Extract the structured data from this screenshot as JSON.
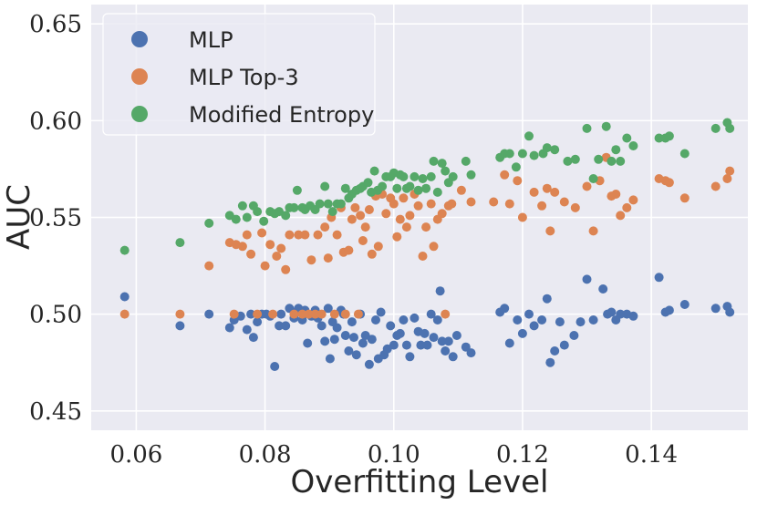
{
  "chart_data": {
    "type": "scatter",
    "title": "",
    "xlabel": "Overfitting Level",
    "ylabel": "AUC",
    "xlim": [
      0.053,
      0.155
    ],
    "ylim": [
      0.44,
      0.66
    ],
    "xticks": [
      0.06,
      0.08,
      0.1,
      0.12,
      0.14
    ],
    "xtick_labels": [
      "0.06",
      "0.08",
      "0.10",
      "0.12",
      "0.14"
    ],
    "yticks": [
      0.45,
      0.5,
      0.55,
      0.6,
      0.65
    ],
    "ytick_labels": [
      "0.45",
      "0.50",
      "0.55",
      "0.60",
      "0.65"
    ],
    "grid": true,
    "legend_position": "top-left",
    "series": [
      {
        "name": "MLP",
        "color": "#4c72b0",
        "points": [
          [
            0.0582,
            0.509
          ],
          [
            0.0668,
            0.494
          ],
          [
            0.0713,
            0.5
          ],
          [
            0.0745,
            0.493
          ],
          [
            0.0752,
            0.497
          ],
          [
            0.0762,
            0.499
          ],
          [
            0.0772,
            0.492
          ],
          [
            0.0778,
            0.5
          ],
          [
            0.0782,
            0.488
          ],
          [
            0.0788,
            0.496
          ],
          [
            0.0795,
            0.5
          ],
          [
            0.0802,
            0.5
          ],
          [
            0.0808,
            0.499
          ],
          [
            0.0815,
            0.473
          ],
          [
            0.0822,
            0.494
          ],
          [
            0.0825,
            0.5
          ],
          [
            0.0832,
            0.494
          ],
          [
            0.0838,
            0.503
          ],
          [
            0.0845,
            0.498
          ],
          [
            0.0848,
            0.501
          ],
          [
            0.0852,
            0.503
          ],
          [
            0.0858,
            0.497
          ],
          [
            0.0862,
            0.502
          ],
          [
            0.0866,
            0.485
          ],
          [
            0.0872,
            0.499
          ],
          [
            0.0878,
            0.502
          ],
          [
            0.0882,
            0.498
          ],
          [
            0.0888,
            0.494
          ],
          [
            0.0893,
            0.486
          ],
          [
            0.0898,
            0.503
          ],
          [
            0.0901,
            0.477
          ],
          [
            0.0905,
            0.496
          ],
          [
            0.0908,
            0.487
          ],
          [
            0.0912,
            0.493
          ],
          [
            0.0918,
            0.502
          ],
          [
            0.0922,
            0.5
          ],
          [
            0.0925,
            0.489
          ],
          [
            0.093,
            0.481
          ],
          [
            0.0935,
            0.496
          ],
          [
            0.0938,
            0.488
          ],
          [
            0.0942,
            0.479
          ],
          [
            0.0948,
            0.5
          ],
          [
            0.0952,
            0.485
          ],
          [
            0.0956,
            0.489
          ],
          [
            0.0962,
            0.474
          ],
          [
            0.0966,
            0.487
          ],
          [
            0.0972,
            0.497
          ],
          [
            0.0976,
            0.477
          ],
          [
            0.098,
            0.501
          ],
          [
            0.0985,
            0.479
          ],
          [
            0.099,
            0.482
          ],
          [
            0.0995,
            0.494
          ],
          [
            0.1,
            0.484
          ],
          [
            0.1005,
            0.489
          ],
          [
            0.101,
            0.49
          ],
          [
            0.1015,
            0.497
          ],
          [
            0.102,
            0.484
          ],
          [
            0.1025,
            0.478
          ],
          [
            0.1032,
            0.498
          ],
          [
            0.1038,
            0.491
          ],
          [
            0.1042,
            0.484
          ],
          [
            0.1048,
            0.49
          ],
          [
            0.1052,
            0.484
          ],
          [
            0.1058,
            0.5
          ],
          [
            0.1062,
            0.488
          ],
          [
            0.1068,
            0.497
          ],
          [
            0.1072,
            0.512
          ],
          [
            0.1075,
            0.486
          ],
          [
            0.108,
            0.481
          ],
          [
            0.1085,
            0.486
          ],
          [
            0.1092,
            0.478
          ],
          [
            0.1098,
            0.489
          ],
          [
            0.1112,
            0.483
          ],
          [
            0.112,
            0.48
          ],
          [
            0.1165,
            0.501
          ],
          [
            0.1172,
            0.503
          ],
          [
            0.118,
            0.485
          ],
          [
            0.1192,
            0.497
          ],
          [
            0.12,
            0.49
          ],
          [
            0.121,
            0.5
          ],
          [
            0.1218,
            0.494
          ],
          [
            0.123,
            0.497
          ],
          [
            0.1238,
            0.508
          ],
          [
            0.1243,
            0.475
          ],
          [
            0.125,
            0.481
          ],
          [
            0.1258,
            0.496
          ],
          [
            0.1265,
            0.484
          ],
          [
            0.128,
            0.489
          ],
          [
            0.129,
            0.496
          ],
          [
            0.13,
            0.518
          ],
          [
            0.131,
            0.497
          ],
          [
            0.1325,
            0.513
          ],
          [
            0.1332,
            0.5
          ],
          [
            0.1338,
            0.501
          ],
          [
            0.1345,
            0.497
          ],
          [
            0.1352,
            0.5
          ],
          [
            0.1362,
            0.5
          ],
          [
            0.1372,
            0.499
          ],
          [
            0.1412,
            0.519
          ],
          [
            0.1422,
            0.501
          ],
          [
            0.1428,
            0.502
          ],
          [
            0.1452,
            0.505
          ],
          [
            0.15,
            0.503
          ],
          [
            0.1518,
            0.504
          ],
          [
            0.1522,
            0.501
          ]
        ]
      },
      {
        "name": "MLP Top-3",
        "color": "#dd8452",
        "points": [
          [
            0.0582,
            0.5
          ],
          [
            0.0668,
            0.5
          ],
          [
            0.0713,
            0.525
          ],
          [
            0.0745,
            0.537
          ],
          [
            0.0752,
            0.5
          ],
          [
            0.0755,
            0.536
          ],
          [
            0.0765,
            0.535
          ],
          [
            0.0772,
            0.541
          ],
          [
            0.0778,
            0.531
          ],
          [
            0.0788,
            0.5
          ],
          [
            0.0795,
            0.542
          ],
          [
            0.08,
            0.525
          ],
          [
            0.0808,
            0.536
          ],
          [
            0.0812,
            0.5
          ],
          [
            0.0818,
            0.53
          ],
          [
            0.0825,
            0.534
          ],
          [
            0.0832,
            0.523
          ],
          [
            0.0838,
            0.541
          ],
          [
            0.0845,
            0.5
          ],
          [
            0.0852,
            0.541
          ],
          [
            0.0858,
            0.5
          ],
          [
            0.0862,
            0.541
          ],
          [
            0.0868,
            0.5
          ],
          [
            0.0872,
            0.528
          ],
          [
            0.0878,
            0.5
          ],
          [
            0.0882,
            0.541
          ],
          [
            0.0888,
            0.5
          ],
          [
            0.0893,
            0.545
          ],
          [
            0.0898,
            0.529
          ],
          [
            0.0903,
            0.55
          ],
          [
            0.0908,
            0.5
          ],
          [
            0.0912,
            0.541
          ],
          [
            0.0918,
            0.555
          ],
          [
            0.0922,
            0.532
          ],
          [
            0.0925,
            0.5
          ],
          [
            0.093,
            0.533
          ],
          [
            0.0935,
            0.549
          ],
          [
            0.094,
            0.555
          ],
          [
            0.0945,
            0.5
          ],
          [
            0.0948,
            0.551
          ],
          [
            0.0952,
            0.538
          ],
          [
            0.0956,
            0.545
          ],
          [
            0.0962,
            0.554
          ],
          [
            0.0966,
            0.531
          ],
          [
            0.0972,
            0.561
          ],
          [
            0.0976,
            0.535
          ],
          [
            0.0982,
            0.562
          ],
          [
            0.0988,
            0.552
          ],
          [
            0.0995,
            0.56
          ],
          [
            0.1,
            0.557
          ],
          [
            0.1005,
            0.54
          ],
          [
            0.101,
            0.549
          ],
          [
            0.1015,
            0.56
          ],
          [
            0.102,
            0.545
          ],
          [
            0.1025,
            0.551
          ],
          [
            0.1032,
            0.562
          ],
          [
            0.1038,
            0.556
          ],
          [
            0.1045,
            0.53
          ],
          [
            0.105,
            0.545
          ],
          [
            0.1058,
            0.557
          ],
          [
            0.1062,
            0.535
          ],
          [
            0.1068,
            0.549
          ],
          [
            0.1075,
            0.552
          ],
          [
            0.108,
            0.5
          ],
          [
            0.1085,
            0.556
          ],
          [
            0.109,
            0.557
          ],
          [
            0.1105,
            0.564
          ],
          [
            0.112,
            0.558
          ],
          [
            0.1155,
            0.558
          ],
          [
            0.1172,
            0.572
          ],
          [
            0.118,
            0.557
          ],
          [
            0.1192,
            0.569
          ],
          [
            0.12,
            0.55
          ],
          [
            0.1218,
            0.563
          ],
          [
            0.123,
            0.556
          ],
          [
            0.1238,
            0.565
          ],
          [
            0.1243,
            0.543
          ],
          [
            0.125,
            0.563
          ],
          [
            0.1265,
            0.558
          ],
          [
            0.1282,
            0.555
          ],
          [
            0.13,
            0.566
          ],
          [
            0.131,
            0.543
          ],
          [
            0.132,
            0.569
          ],
          [
            0.133,
            0.581
          ],
          [
            0.1338,
            0.561
          ],
          [
            0.1345,
            0.562
          ],
          [
            0.1352,
            0.551
          ],
          [
            0.1362,
            0.555
          ],
          [
            0.1372,
            0.559
          ],
          [
            0.1412,
            0.57
          ],
          [
            0.1422,
            0.569
          ],
          [
            0.1428,
            0.568
          ],
          [
            0.1452,
            0.56
          ],
          [
            0.15,
            0.566
          ],
          [
            0.1518,
            0.57
          ],
          [
            0.1522,
            0.574
          ]
        ]
      },
      {
        "name": "Modified Entropy",
        "color": "#55a868",
        "points": [
          [
            0.0582,
            0.533
          ],
          [
            0.0668,
            0.537
          ],
          [
            0.0713,
            0.547
          ],
          [
            0.0745,
            0.551
          ],
          [
            0.0755,
            0.549
          ],
          [
            0.0765,
            0.556
          ],
          [
            0.0772,
            0.55
          ],
          [
            0.0782,
            0.556
          ],
          [
            0.0788,
            0.553
          ],
          [
            0.0798,
            0.548
          ],
          [
            0.0808,
            0.553
          ],
          [
            0.0815,
            0.552
          ],
          [
            0.0822,
            0.553
          ],
          [
            0.0832,
            0.551
          ],
          [
            0.0838,
            0.555
          ],
          [
            0.0845,
            0.555
          ],
          [
            0.085,
            0.564
          ],
          [
            0.0858,
            0.555
          ],
          [
            0.0862,
            0.554
          ],
          [
            0.087,
            0.556
          ],
          [
            0.0878,
            0.554
          ],
          [
            0.0885,
            0.557
          ],
          [
            0.0893,
            0.566
          ],
          [
            0.0898,
            0.557
          ],
          [
            0.0905,
            0.553
          ],
          [
            0.0912,
            0.557
          ],
          [
            0.0918,
            0.557
          ],
          [
            0.0925,
            0.565
          ],
          [
            0.093,
            0.56
          ],
          [
            0.0935,
            0.562
          ],
          [
            0.0942,
            0.564
          ],
          [
            0.0948,
            0.565
          ],
          [
            0.0952,
            0.566
          ],
          [
            0.096,
            0.568
          ],
          [
            0.0965,
            0.563
          ],
          [
            0.097,
            0.574
          ],
          [
            0.0975,
            0.564
          ],
          [
            0.0982,
            0.566
          ],
          [
            0.0988,
            0.571
          ],
          [
            0.0995,
            0.571
          ],
          [
            0.1,
            0.573
          ],
          [
            0.1005,
            0.565
          ],
          [
            0.101,
            0.572
          ],
          [
            0.1015,
            0.571
          ],
          [
            0.102,
            0.565
          ],
          [
            0.1025,
            0.566
          ],
          [
            0.1032,
            0.571
          ],
          [
            0.1038,
            0.564
          ],
          [
            0.1045,
            0.57
          ],
          [
            0.105,
            0.565
          ],
          [
            0.1058,
            0.571
          ],
          [
            0.1062,
            0.579
          ],
          [
            0.1068,
            0.563
          ],
          [
            0.1075,
            0.578
          ],
          [
            0.108,
            0.574
          ],
          [
            0.1085,
            0.568
          ],
          [
            0.1092,
            0.571
          ],
          [
            0.1112,
            0.579
          ],
          [
            0.112,
            0.572
          ],
          [
            0.1165,
            0.581
          ],
          [
            0.1172,
            0.583
          ],
          [
            0.118,
            0.583
          ],
          [
            0.119,
            0.576
          ],
          [
            0.12,
            0.583
          ],
          [
            0.121,
            0.592
          ],
          [
            0.1218,
            0.582
          ],
          [
            0.1232,
            0.583
          ],
          [
            0.1238,
            0.586
          ],
          [
            0.125,
            0.585
          ],
          [
            0.127,
            0.579
          ],
          [
            0.1282,
            0.58
          ],
          [
            0.13,
            0.596
          ],
          [
            0.131,
            0.57
          ],
          [
            0.1318,
            0.58
          ],
          [
            0.133,
            0.597
          ],
          [
            0.1338,
            0.579
          ],
          [
            0.1345,
            0.585
          ],
          [
            0.1352,
            0.579
          ],
          [
            0.1362,
            0.591
          ],
          [
            0.1372,
            0.587
          ],
          [
            0.1412,
            0.591
          ],
          [
            0.1422,
            0.591
          ],
          [
            0.1428,
            0.592
          ],
          [
            0.1452,
            0.583
          ],
          [
            0.15,
            0.596
          ],
          [
            0.1518,
            0.599
          ],
          [
            0.1522,
            0.596
          ]
        ]
      }
    ]
  }
}
